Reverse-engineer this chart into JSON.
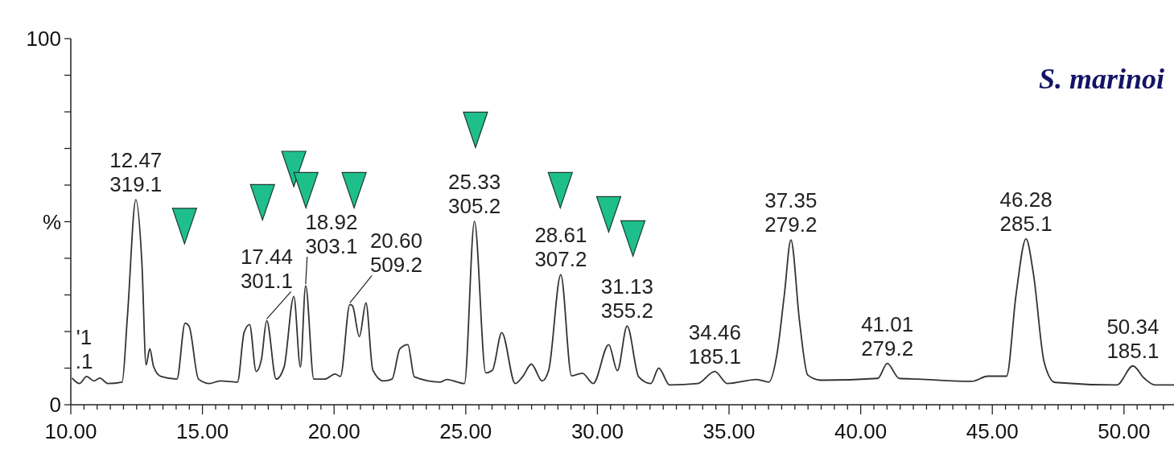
{
  "chart_data": {
    "type": "line",
    "title": "S. marinoi",
    "xlim": [
      10,
      51.9
    ],
    "ylim": [
      0,
      100
    ],
    "xticks": [
      {
        "value": 10,
        "label": "10.00"
      },
      {
        "value": 10.5,
        "label": null
      },
      {
        "value": 11,
        "label": null
      },
      {
        "value": 11.5,
        "label": null
      },
      {
        "value": 12,
        "label": null
      },
      {
        "value": 12.5,
        "label": null
      },
      {
        "value": 13,
        "label": null
      },
      {
        "value": 13.5,
        "label": null
      },
      {
        "value": 14,
        "label": null
      },
      {
        "value": 14.5,
        "label": null
      },
      {
        "value": 15,
        "label": "15.00"
      },
      {
        "value": 15.5,
        "label": null
      },
      {
        "value": 16,
        "label": null
      },
      {
        "value": 16.5,
        "label": null
      },
      {
        "value": 17,
        "label": null
      },
      {
        "value": 17.5,
        "label": null
      },
      {
        "value": 18,
        "label": null
      },
      {
        "value": 18.5,
        "label": null
      },
      {
        "value": 19,
        "label": null
      },
      {
        "value": 19.5,
        "label": null
      },
      {
        "value": 20,
        "label": "20.00"
      },
      {
        "value": 20.5,
        "label": null
      },
      {
        "value": 21,
        "label": null
      },
      {
        "value": 21.5,
        "label": null
      },
      {
        "value": 22,
        "label": null
      },
      {
        "value": 22.5,
        "label": null
      },
      {
        "value": 23,
        "label": null
      },
      {
        "value": 23.5,
        "label": null
      },
      {
        "value": 24,
        "label": null
      },
      {
        "value": 24.5,
        "label": null
      },
      {
        "value": 25,
        "label": "25.00"
      },
      {
        "value": 25.5,
        "label": null
      },
      {
        "value": 26,
        "label": null
      },
      {
        "value": 26.5,
        "label": null
      },
      {
        "value": 27,
        "label": null
      },
      {
        "value": 27.5,
        "label": null
      },
      {
        "value": 28,
        "label": null
      },
      {
        "value": 28.5,
        "label": null
      },
      {
        "value": 29,
        "label": null
      },
      {
        "value": 29.5,
        "label": null
      },
      {
        "value": 30,
        "label": "30.00"
      },
      {
        "value": 30.5,
        "label": null
      },
      {
        "value": 31,
        "label": null
      },
      {
        "value": 31.5,
        "label": null
      },
      {
        "value": 32,
        "label": null
      },
      {
        "value": 32.5,
        "label": null
      },
      {
        "value": 33,
        "label": null
      },
      {
        "value": 33.5,
        "label": null
      },
      {
        "value": 34,
        "label": null
      },
      {
        "value": 34.5,
        "label": null
      },
      {
        "value": 35,
        "label": "35.00"
      },
      {
        "value": 35.5,
        "label": null
      },
      {
        "value": 36,
        "label": null
      },
      {
        "value": 36.5,
        "label": null
      },
      {
        "value": 37,
        "label": null
      },
      {
        "value": 37.5,
        "label": null
      },
      {
        "value": 38,
        "label": null
      },
      {
        "value": 38.5,
        "label": null
      },
      {
        "value": 39,
        "label": null
      },
      {
        "value": 39.5,
        "label": null
      },
      {
        "value": 40,
        "label": "40.00"
      },
      {
        "value": 40.5,
        "label": null
      },
      {
        "value": 41,
        "label": null
      },
      {
        "value": 41.5,
        "label": null
      },
      {
        "value": 42,
        "label": null
      },
      {
        "value": 42.5,
        "label": null
      },
      {
        "value": 43,
        "label": null
      },
      {
        "value": 43.5,
        "label": null
      },
      {
        "value": 44,
        "label": null
      },
      {
        "value": 44.5,
        "label": null
      },
      {
        "value": 45,
        "label": "45.00"
      },
      {
        "value": 45.5,
        "label": null
      },
      {
        "value": 46,
        "label": null
      },
      {
        "value": 46.5,
        "label": null
      },
      {
        "value": 47,
        "label": null
      },
      {
        "value": 47.5,
        "label": null
      },
      {
        "value": 48,
        "label": null
      },
      {
        "value": 48.5,
        "label": null
      },
      {
        "value": 49,
        "label": null
      },
      {
        "value": 49.5,
        "label": null
      },
      {
        "value": 50,
        "label": "50.00"
      },
      {
        "value": 50.5,
        "label": null
      },
      {
        "value": 51,
        "label": null
      },
      {
        "value": 51.5,
        "label": null
      }
    ],
    "yticks": [
      0,
      {
        "value": 10,
        "label": null
      },
      {
        "value": 20,
        "label": null
      },
      {
        "value": 30,
        "label": null
      },
      {
        "value": 40,
        "label": null
      },
      {
        "value": 50,
        "label": "%"
      },
      {
        "value": 60,
        "label": null
      },
      {
        "value": 70,
        "label": null
      },
      {
        "value": 80,
        "label": null
      },
      {
        "value": 90,
        "label": null
      },
      100
    ],
    "series": [
      {
        "color": "#333333",
        "marker": "none",
        "x": [
          10.05,
          10.33,
          10.6,
          10.88,
          11.1,
          11.4,
          11.95,
          12.15,
          12.47,
          12.7,
          12.86,
          13.0,
          13.14,
          13.43,
          14.03,
          14.34,
          14.49,
          14.85,
          15.26,
          15.67,
          16.33,
          16.58,
          16.79,
          17.04,
          17.24,
          17.44,
          17.8,
          18.1,
          18.47,
          18.72,
          18.92,
          19.23,
          19.64,
          20.04,
          20.24,
          20.6,
          20.7,
          20.96,
          21.21,
          21.47,
          21.88,
          22.2,
          22.5,
          22.8,
          23.05,
          24.03,
          24.28,
          24.95,
          25.33,
          25.76,
          26.01,
          26.37,
          26.88,
          27.18,
          27.49,
          27.9,
          28.15,
          28.61,
          29.02,
          29.43,
          29.84,
          30.43,
          30.76,
          31.13,
          31.57,
          32.03,
          32.33,
          32.74,
          33.81,
          34.46,
          34.93,
          36.05,
          36.51,
          36.82,
          37.1,
          37.35,
          37.68,
          37.99,
          38.5,
          40.65,
          41.01,
          41.46,
          42.18,
          44.22,
          44.83,
          45.54,
          45.9,
          46.28,
          46.56,
          46.97,
          47.38,
          49.73,
          50.34,
          50.76,
          51.17,
          51.9
        ],
        "values": [
          7.3,
          5.8,
          7.7,
          6.5,
          7.3,
          5.8,
          6.2,
          24.1,
          56,
          38.7,
          10.9,
          15.3,
          10.5,
          7.7,
          7.0,
          22.3,
          21.5,
          7.0,
          5.8,
          6.5,
          6.2,
          19.7,
          21.9,
          9.1,
          12.4,
          23,
          7,
          10.3,
          29.6,
          10.3,
          32.5,
          7,
          7,
          8.4,
          7.7,
          27.4,
          27,
          18.6,
          27.8,
          9.5,
          6.5,
          7,
          15.3,
          16.4,
          7.6,
          6.2,
          6.9,
          5.8,
          50.1,
          8.7,
          9.4,
          19.7,
          5.8,
          7.9,
          11.1,
          6.5,
          9.4,
          35.5,
          7.9,
          8.6,
          5.8,
          16.4,
          9.3,
          21.5,
          7.6,
          5.8,
          10,
          5.4,
          5.8,
          9.1,
          5.8,
          6.9,
          6.2,
          13.8,
          30,
          45,
          22.6,
          8.1,
          6.7,
          7.2,
          11.3,
          7.2,
          7.0,
          6.4,
          7.8,
          7.8,
          30,
          45.3,
          35.8,
          11.6,
          6.1,
          5.4,
          10.6,
          7.3,
          5.4,
          5.4
        ]
      },
      {
        "type": "scatter",
        "color": "#1fbf8c",
        "marker": "triangle",
        "x": [
          14.32,
          17.28,
          18.47,
          18.93,
          20.76,
          25.37,
          28.59,
          30.43,
          31.35
        ],
        "values": [
          48.8,
          55.3,
          64.4,
          58.6,
          58.6,
          75.1,
          58.6,
          52.0,
          45.4
        ]
      }
    ],
    "annotations": [
      {
        "text": "'1\n.1",
        "x": 10.05,
        "y": 7.3
      },
      {
        "text": "12.47\n319.1",
        "x": 12.47,
        "y": 56
      },
      {
        "text": "17.44\n301.1",
        "x": 17.44,
        "y": 23
      },
      {
        "text": "18.92\n303.1",
        "x": 18.92,
        "y": 32.5
      },
      {
        "text": "20.60\n509.2",
        "x": 20.6,
        "y": 27.4
      },
      {
        "text": "25.33\n305.2",
        "x": 25.33,
        "y": 50.1
      },
      {
        "text": "28.61\n307.2",
        "x": 28.61,
        "y": 35.5
      },
      {
        "text": "31.13\n355.2",
        "x": 31.13,
        "y": 21.5
      },
      {
        "text": "34.46\n185.1",
        "x": 34.46,
        "y": 9.1
      },
      {
        "text": "37.35\n279.2",
        "x": 37.35,
        "y": 45
      },
      {
        "text": "41.01\n279.2",
        "x": 41.01,
        "y": 11.3
      },
      {
        "text": "46.28\n285.1",
        "x": 46.28,
        "y": 45.3
      },
      {
        "text": "50.34\n185.1",
        "x": 50.34,
        "y": 10.6
      }
    ]
  }
}
